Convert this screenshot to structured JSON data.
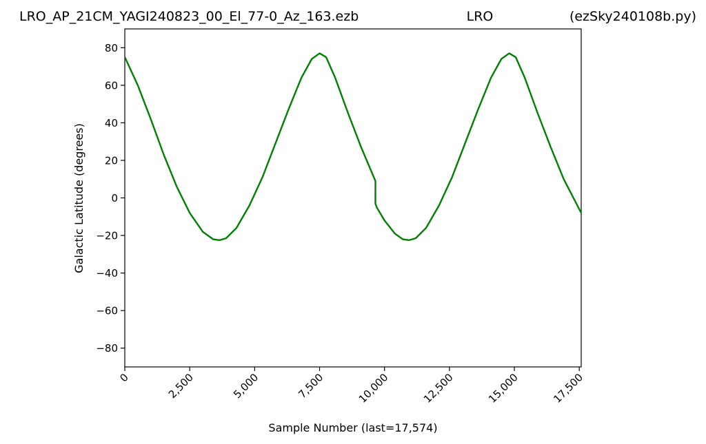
{
  "header": {
    "title_left": "LRO_AP_21CM_YAGI240823_00_El_77-0_Az_163.ezb",
    "title_center": "LRO",
    "title_right": "(ezSky240108b.py)"
  },
  "chart_data": {
    "type": "line",
    "xlabel": "Sample Number (last=17,574)",
    "ylabel": "Galactic Latitude (degrees)",
    "xlim": [
      0,
      17574
    ],
    "ylim": [
      -90,
      90
    ],
    "grid": false,
    "x_ticks": [
      0,
      2500,
      5000,
      7500,
      10000,
      12500,
      15000,
      17500
    ],
    "x_tick_labels": [
      "0",
      "2,500",
      "5,000",
      "7,500",
      "10,000",
      "12,500",
      "15,000",
      "17,500"
    ],
    "y_ticks": [
      -80,
      -60,
      -40,
      -20,
      0,
      20,
      40,
      60,
      80
    ],
    "y_tick_labels": [
      "−80",
      "−60",
      "−40",
      "−20",
      "0",
      "20",
      "40",
      "60",
      "80"
    ],
    "series": [
      {
        "color": "#008000",
        "x": [
          0,
          500,
          1000,
          1500,
          2000,
          2500,
          3000,
          3400,
          3650,
          3900,
          4300,
          4800,
          5300,
          5800,
          6300,
          6800,
          7200,
          7500,
          7750,
          8100,
          8600,
          9100,
          9650,
          9650,
          9700,
          10000,
          10400,
          10700,
          10950,
          11200,
          11600,
          12100,
          12600,
          13100,
          13600,
          14100,
          14500,
          14800,
          15050,
          15400,
          15900,
          16400,
          16900,
          17574
        ],
        "y": [
          75,
          60,
          42,
          23,
          6,
          -8,
          -18,
          -22,
          -22.5,
          -21.5,
          -16,
          -4,
          11,
          29,
          47,
          64,
          74,
          77,
          75,
          64,
          45,
          27,
          9,
          -3,
          -5,
          -12,
          -19,
          -22,
          -22.5,
          -21.5,
          -16,
          -4,
          11,
          29,
          47,
          64,
          74,
          77,
          75,
          64,
          45,
          27,
          10,
          -8
        ]
      }
    ]
  }
}
